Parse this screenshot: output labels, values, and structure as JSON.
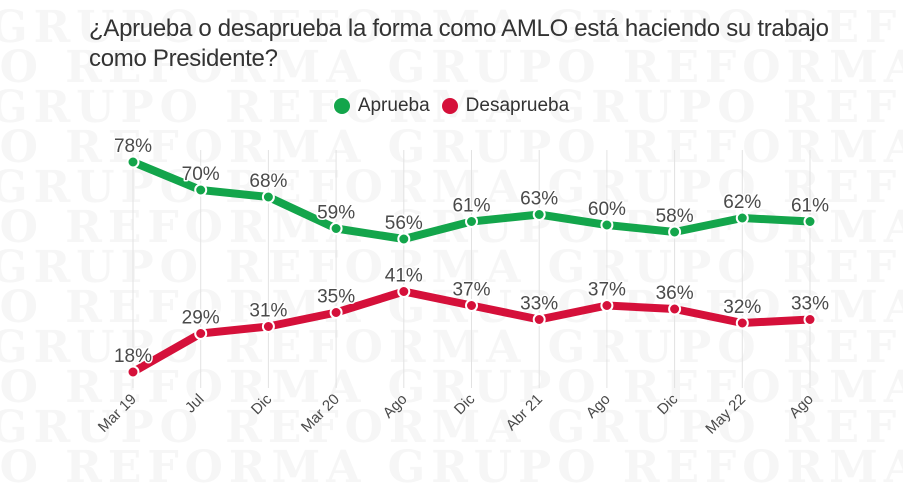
{
  "title": "¿Aprueba o desaprueba la forma como AMLO está haciendo su trabajo como Presidente?",
  "watermark_text": "GRUPO REFORMA",
  "legend": [
    {
      "label": "Aprueba",
      "color": "#13a54b"
    },
    {
      "label": "Desaprueba",
      "color": "#d5103a"
    }
  ],
  "chart_data": {
    "type": "line",
    "title": "¿Aprueba o desaprueba la forma como AMLO está haciendo su trabajo como Presidente?",
    "xlabel": "",
    "ylabel": "",
    "categories": [
      "Mar 19",
      "Jul",
      "Dic",
      "Mar 20",
      "Ago",
      "Dic",
      "Abr 21",
      "Ago",
      "Dic",
      "May 22",
      "Ago"
    ],
    "series": [
      {
        "name": "Aprueba",
        "color": "#13a54b",
        "values": [
          78,
          70,
          68,
          59,
          56,
          61,
          63,
          60,
          58,
          62,
          61
        ]
      },
      {
        "name": "Desaprueba",
        "color": "#d5103a",
        "values": [
          18,
          29,
          31,
          35,
          41,
          37,
          33,
          37,
          36,
          32,
          33
        ]
      }
    ],
    "value_suffix": "%",
    "ylim": [
      18,
      78
    ],
    "grid": "vertical",
    "legend_position": "top-center"
  }
}
